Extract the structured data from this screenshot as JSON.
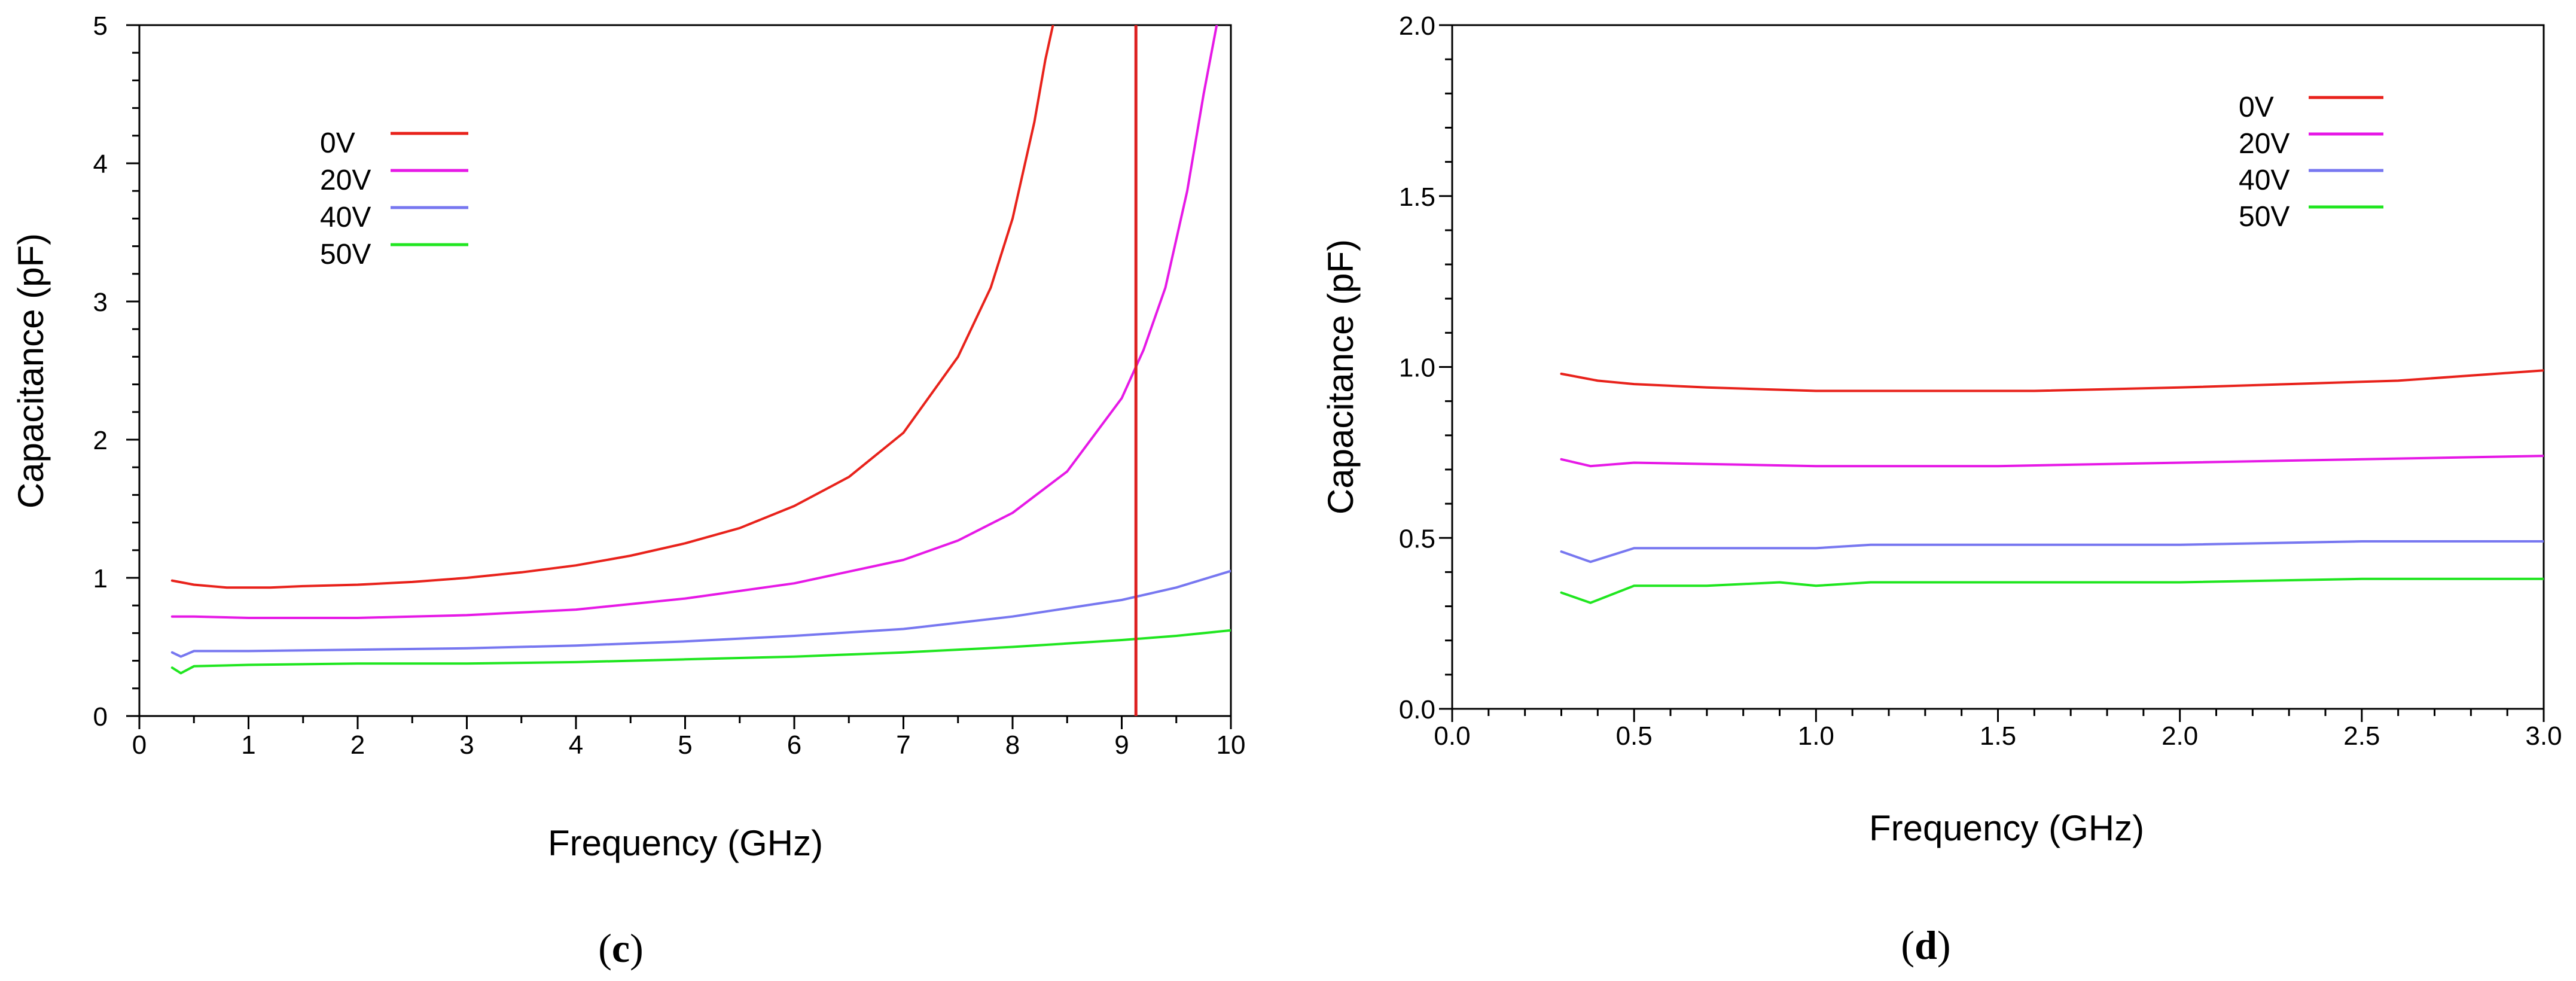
{
  "chart_data": [
    {
      "panel": "c",
      "type": "line",
      "xlabel": "Frequency (GHz)",
      "ylabel": "Capacitance (pF)",
      "xlim": [
        0,
        10
      ],
      "ylim": [
        0,
        5
      ],
      "xticks": [
        0,
        1,
        2,
        3,
        4,
        5,
        6,
        7,
        8,
        9,
        10
      ],
      "xtick_labels": [
        "0",
        "1",
        "2",
        "3",
        "4",
        "5",
        "6",
        "7",
        "8",
        "9",
        "10"
      ],
      "yticks": [
        0,
        1,
        2,
        3,
        4,
        5
      ],
      "ytick_labels": [
        "0",
        "1",
        "2",
        "3",
        "4",
        "5"
      ],
      "legend_position": "top-left",
      "grid": false,
      "vertical_marker": {
        "x": 9.13,
        "color": "#dd1f1f"
      },
      "series": [
        {
          "name": "0V",
          "color": "#e8221b",
          "x": [
            0.3,
            0.5,
            0.8,
            1.2,
            1.5,
            2,
            2.5,
            3,
            3.5,
            4,
            4.5,
            5,
            5.5,
            6,
            6.5,
            7,
            7.5,
            7.8,
            8.0,
            8.2,
            8.3,
            8.37
          ],
          "y": [
            0.98,
            0.95,
            0.93,
            0.93,
            0.94,
            0.95,
            0.97,
            1.0,
            1.04,
            1.09,
            1.16,
            1.25,
            1.36,
            1.52,
            1.73,
            2.05,
            2.6,
            3.1,
            3.6,
            4.3,
            4.75,
            5.0
          ]
        },
        {
          "name": "20V",
          "color": "#e619e6",
          "x": [
            0.3,
            0.5,
            1,
            1.5,
            2,
            3,
            4,
            5,
            6,
            7,
            7.5,
            8,
            8.5,
            9,
            9.2,
            9.4,
            9.6,
            9.75,
            9.87
          ],
          "y": [
            0.72,
            0.72,
            0.71,
            0.71,
            0.71,
            0.73,
            0.77,
            0.85,
            0.96,
            1.13,
            1.27,
            1.47,
            1.77,
            2.3,
            2.65,
            3.1,
            3.8,
            4.5,
            5.0
          ]
        },
        {
          "name": "40V",
          "color": "#7777f0",
          "x": [
            0.3,
            0.38,
            0.5,
            1,
            2,
            3,
            4,
            5,
            6,
            7,
            8,
            9,
            9.5,
            10
          ],
          "y": [
            0.46,
            0.43,
            0.47,
            0.47,
            0.48,
            0.49,
            0.51,
            0.54,
            0.58,
            0.63,
            0.72,
            0.84,
            0.93,
            1.05
          ]
        },
        {
          "name": "50V",
          "color": "#20e620",
          "x": [
            0.3,
            0.38,
            0.5,
            1,
            2,
            3,
            4,
            5,
            6,
            7,
            8,
            9,
            9.5,
            10
          ],
          "y": [
            0.35,
            0.31,
            0.36,
            0.37,
            0.38,
            0.38,
            0.39,
            0.41,
            0.43,
            0.46,
            0.5,
            0.55,
            0.58,
            0.62
          ]
        }
      ]
    },
    {
      "panel": "d",
      "type": "line",
      "xlabel": "Frequency (GHz)",
      "ylabel": "Capacitance (pF)",
      "xlim": [
        0,
        3
      ],
      "ylim": [
        0,
        2
      ],
      "xticks": [
        0,
        0.5,
        1,
        1.5,
        2,
        2.5,
        3
      ],
      "xtick_labels": [
        "0.0",
        "0.5",
        "1.0",
        "1.5",
        "2.0",
        "2.5",
        "3.0"
      ],
      "yticks": [
        0,
        0.5,
        1,
        1.5,
        2
      ],
      "ytick_labels": [
        "0.0",
        "0.5",
        "1.0",
        "1.5",
        "2.0"
      ],
      "legend_position": "top-right",
      "grid": false,
      "series": [
        {
          "name": "0V",
          "color": "#e8221b",
          "x": [
            0.3,
            0.4,
            0.5,
            0.7,
            1.0,
            1.3,
            1.6,
            2.0,
            2.3,
            2.6,
            3.0
          ],
          "y": [
            0.98,
            0.96,
            0.95,
            0.94,
            0.93,
            0.93,
            0.93,
            0.94,
            0.95,
            0.96,
            0.99
          ]
        },
        {
          "name": "20V",
          "color": "#e619e6",
          "x": [
            0.3,
            0.38,
            0.5,
            1.0,
            1.5,
            2.0,
            2.5,
            3.0
          ],
          "y": [
            0.73,
            0.71,
            0.72,
            0.71,
            0.71,
            0.72,
            0.73,
            0.74
          ]
        },
        {
          "name": "40V",
          "color": "#7777f0",
          "x": [
            0.3,
            0.38,
            0.5,
            0.8,
            1.0,
            1.15,
            1.5,
            2.0,
            2.5,
            3.0
          ],
          "y": [
            0.46,
            0.43,
            0.47,
            0.47,
            0.47,
            0.48,
            0.48,
            0.48,
            0.49,
            0.49
          ]
        },
        {
          "name": "50V",
          "color": "#20e620",
          "x": [
            0.3,
            0.38,
            0.5,
            0.7,
            0.9,
            1.0,
            1.15,
            1.5,
            2.0,
            2.5,
            3.0
          ],
          "y": [
            0.34,
            0.31,
            0.36,
            0.36,
            0.37,
            0.36,
            0.37,
            0.37,
            0.37,
            0.38,
            0.38
          ]
        }
      ]
    }
  ],
  "panel_labels": {
    "c_open": "(",
    "c_letter": "c",
    "c_close": ")",
    "d_open": "(",
    "d_letter": "d",
    "d_close": ")"
  }
}
